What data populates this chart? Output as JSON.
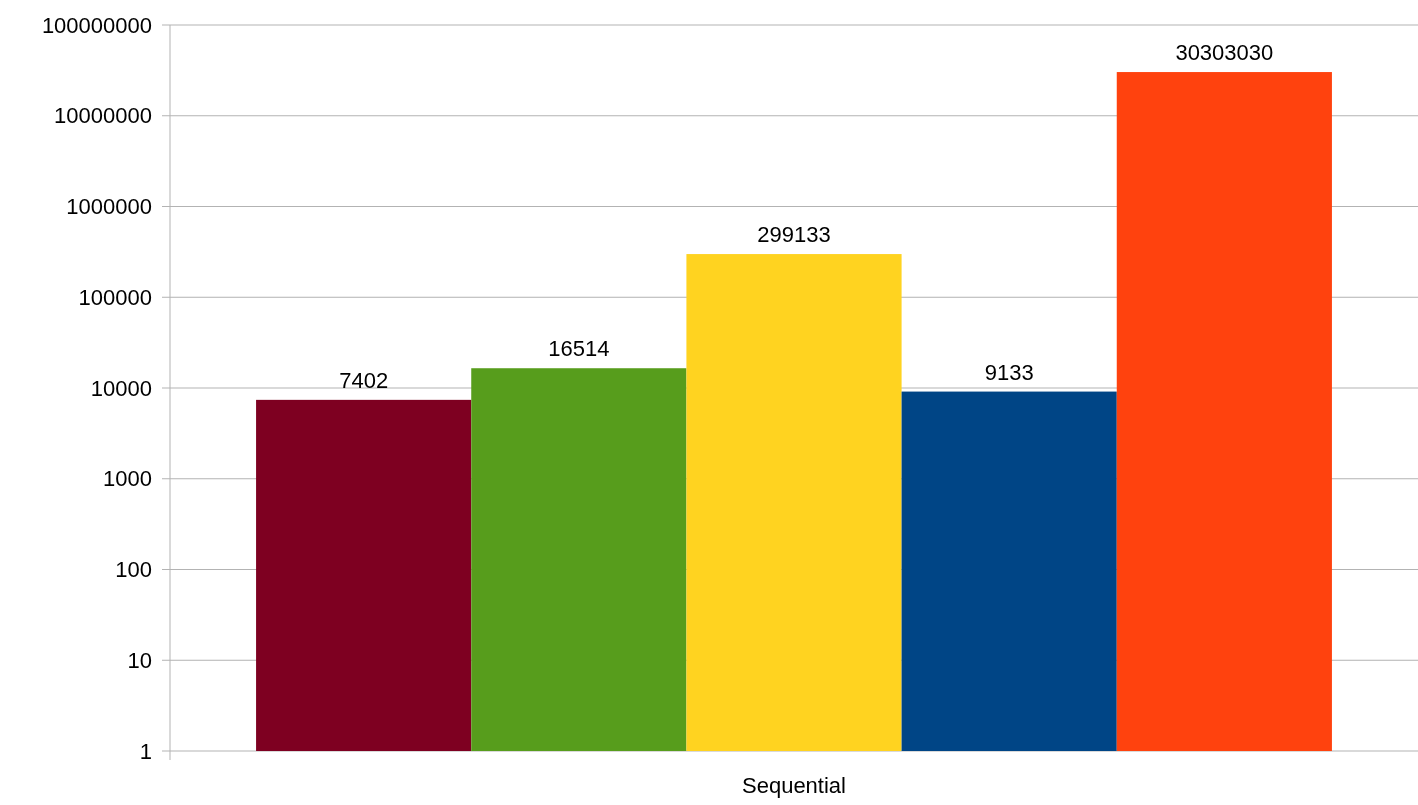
{
  "chart_data": {
    "type": "bar",
    "categories": [
      "Sequential"
    ],
    "series": [
      {
        "color": "#7e0021",
        "values": [
          7402
        ]
      },
      {
        "color": "#579d1c",
        "values": [
          16514
        ]
      },
      {
        "color": "#ffd320",
        "values": [
          299133
        ]
      },
      {
        "color": "#004586",
        "values": [
          9133
        ]
      },
      {
        "color": "#ff420e",
        "values": [
          30303030
        ]
      }
    ],
    "log": true,
    "ylim": [
      1,
      100000000
    ],
    "yticks": [
      1,
      10,
      100,
      1000,
      10000,
      100000,
      1000000,
      10000000,
      100000000
    ],
    "grid": "y",
    "data_labels": true
  }
}
